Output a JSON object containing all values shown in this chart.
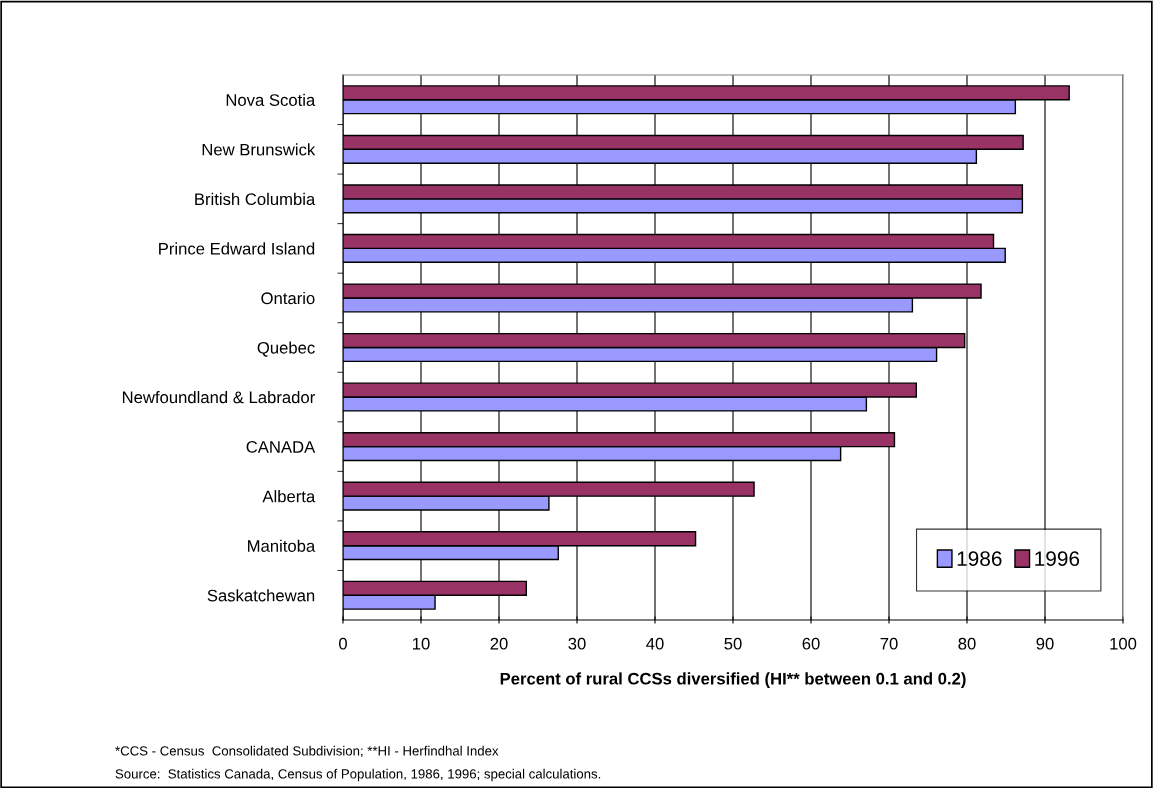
{
  "chart_data": {
    "type": "bar",
    "orientation": "horizontal",
    "xlabel": "Percent of rural CCSs diversified (HI** between 0.1 and 0.2)",
    "categories": [
      "Nova Scotia",
      "New Brunswick",
      "British Columbia",
      "Prince Edward Island",
      "Ontario",
      "Quebec",
      "Newfoundland & Labrador",
      "CANADA",
      "Alberta",
      "Manitoba",
      "Saskatchewan"
    ],
    "series": [
      {
        "name": "1986",
        "color": "#9999ff",
        "values": [
          86.2,
          81.2,
          87.1,
          84.9,
          73.0,
          76.1,
          67.1,
          63.8,
          26.4,
          27.6,
          11.8
        ]
      },
      {
        "name": "1996",
        "color": "#993366",
        "values": [
          93.1,
          87.2,
          87.1,
          83.4,
          81.8,
          79.7,
          73.5,
          70.7,
          52.7,
          45.2,
          23.5
        ]
      }
    ],
    "xlim": [
      0,
      100
    ],
    "xticks": [
      0,
      10,
      20,
      30,
      40,
      50,
      60,
      70,
      80,
      90,
      100
    ],
    "grid": "x",
    "legend": "bottom right",
    "annotations": [
      "*CCS - Census  Consolidated Subdivision; **HI - Herfindhal Index",
      "Source:  Statistics Canada, Census of Population, 1986, 1996; special calculations."
    ]
  }
}
